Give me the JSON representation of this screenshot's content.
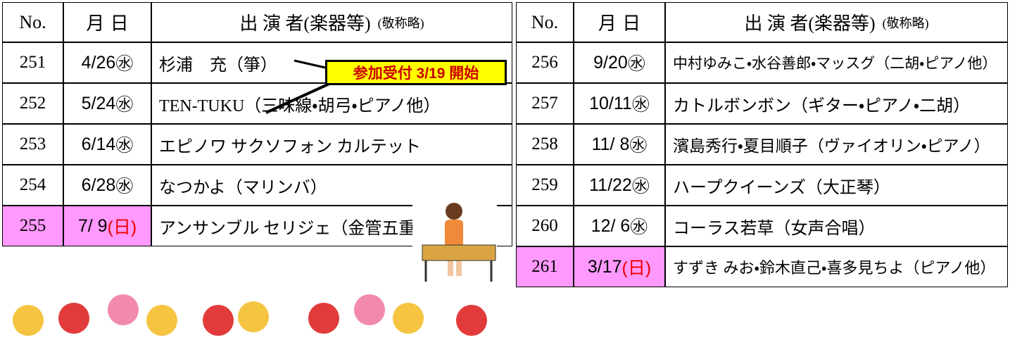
{
  "left_table": {
    "header": {
      "no": "No.",
      "date": "月 日",
      "performer": "出 演 者(楽器等)",
      "note": "(敬称略)"
    },
    "rows": [
      {
        "no": "251",
        "date": "4/26",
        "day": "㊌",
        "performer": "杉浦　充（箏）"
      },
      {
        "no": "252",
        "date": "5/24",
        "day": "㊌",
        "performer": "TEN-TUKU（三味線・胡弓・ピアノ他）"
      },
      {
        "no": "253",
        "date": "6/14",
        "day": "㊌",
        "performer": "エピノワ サクソフォン カルテット"
      },
      {
        "no": "254",
        "date": "6/28",
        "day": "㊌",
        "performer": "なつかよ（マリンバ）"
      },
      {
        "no": "255",
        "date": "7/ 9",
        "day": "(日)",
        "performer": "アンサンブル セリジェ（金管五重奏）",
        "highlight": true
      }
    ]
  },
  "right_table": {
    "header": {
      "no": "No.",
      "date": "月 日",
      "performer": "出 演 者(楽器等)",
      "note": "(敬称略)"
    },
    "rows": [
      {
        "no": "256",
        "date": "9/20",
        "day": "㊌",
        "performer": "中村ゆみこ・水谷善郎・マッスグ（二胡・ピアノ他）"
      },
      {
        "no": "257",
        "date": "10/11",
        "day": "㊌",
        "performer": "カトルボンボン（ギター・ピアノ・二胡）"
      },
      {
        "no": "258",
        "date": "11/ 8",
        "day": "㊌",
        "performer": "濱島秀行・夏目順子（ヴァイオリン・ピアノ）"
      },
      {
        "no": "259",
        "date": "11/22",
        "day": "㊌",
        "performer": "ハープクイーンズ（大正琴）"
      },
      {
        "no": "260",
        "date": "12/ 6",
        "day": "㊌",
        "performer": "コーラス若草（女声合唱）"
      },
      {
        "no": "261",
        "date": "3/17",
        "day": "(日)",
        "performer": "すずき みお・鈴木直己・喜多見ちよ（ピアノ他）",
        "highlight": true
      }
    ]
  },
  "callout": "参加受付 3/19 開始"
}
